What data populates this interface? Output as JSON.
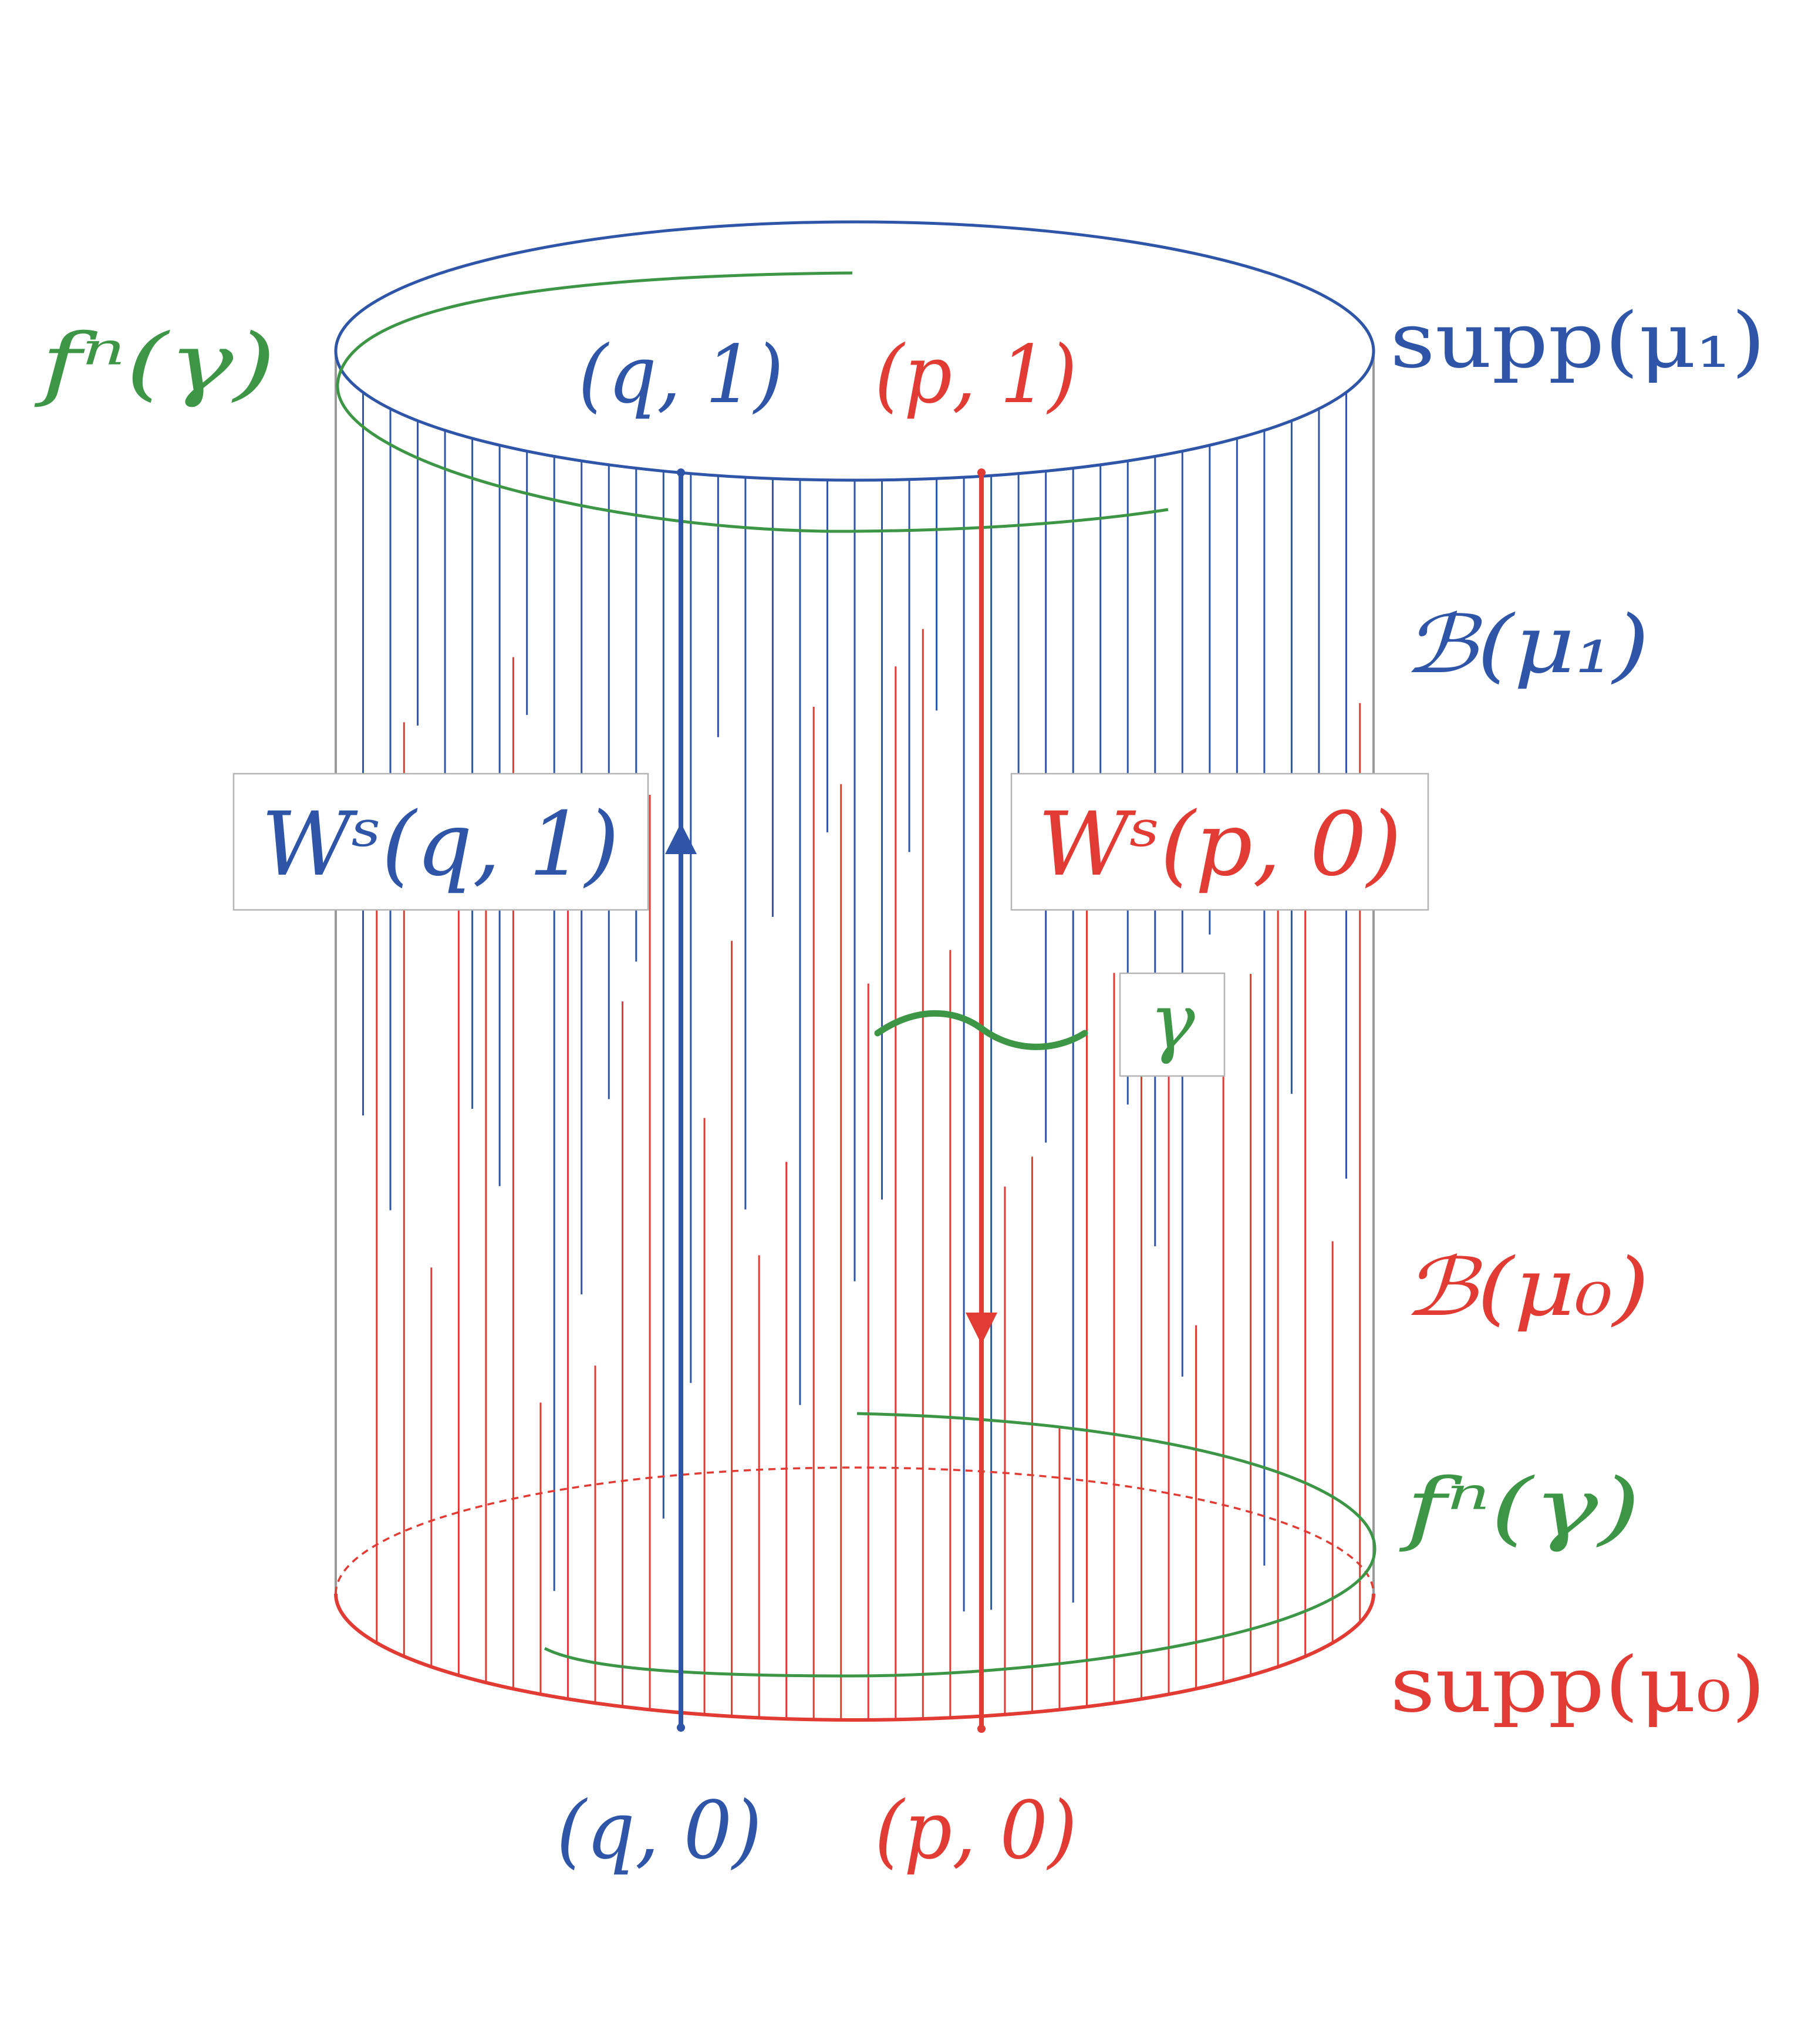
{
  "colors": {
    "blue": "#2e55a7",
    "red": "#e23b34",
    "green": "#3c9645",
    "grey": "#9a9a9a"
  },
  "labels": {
    "fn_gamma_top": "fⁿ(γ)",
    "supp_mu1": "supp(μ₁)",
    "q1": "(q, 1)",
    "p1": "(p, 1)",
    "b_mu1": "ℬ(μ₁)",
    "ws_q1": "Wˢ(q, 1)",
    "ws_p0": "Wˢ(p, 0)",
    "gamma": "γ",
    "b_mu0": "ℬ(μ₀)",
    "fn_gamma_bottom": "fⁿ(γ)",
    "supp_mu0": "supp(μ₀)",
    "q0": "(q, 0)",
    "p0": "(p, 0)"
  },
  "icons": {
    "up_arrow": "arrow-up-icon",
    "down_arrow": "arrow-down-icon"
  }
}
